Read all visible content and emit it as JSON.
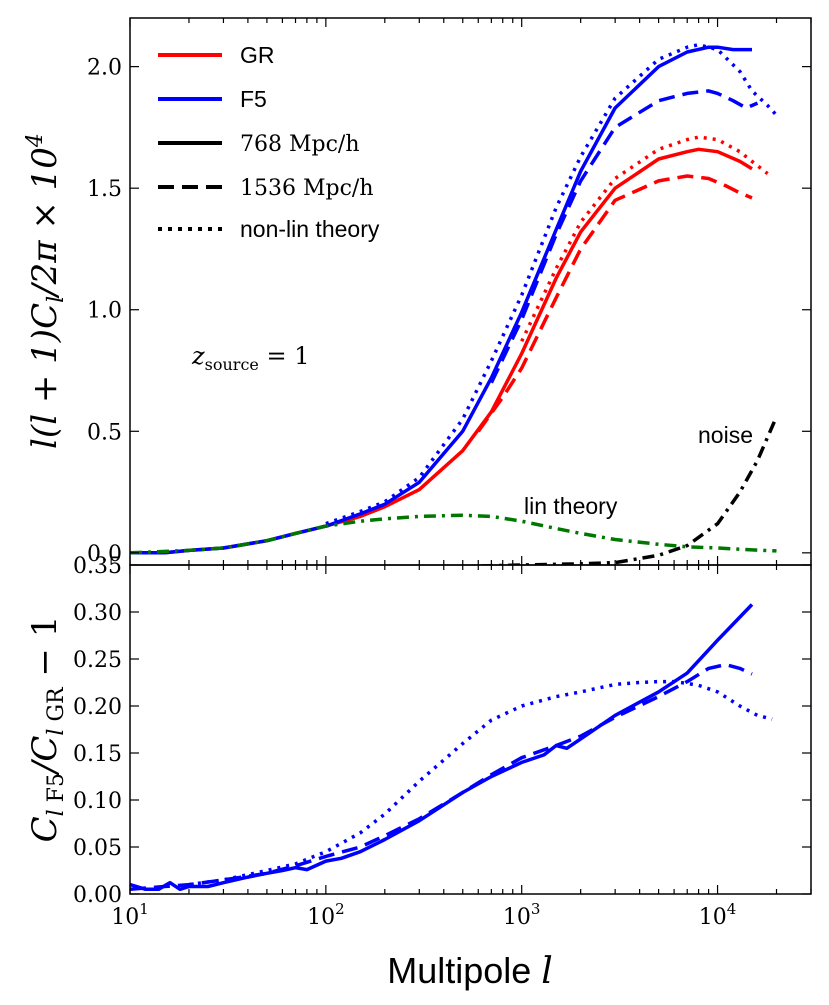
{
  "chart_data": [
    {
      "panel": "top",
      "type": "line",
      "xscale": "log",
      "xlim": [
        10,
        30000
      ],
      "ylim": [
        -0.05,
        2.2
      ],
      "yticks": [
        0.0,
        0.5,
        1.0,
        1.5,
        2.0
      ],
      "ytick_labels": [
        "0.0",
        "0.5",
        "1.0",
        "1.5",
        "2.0"
      ],
      "ylabel": "l(l + 1)C_l/2π × 10^4",
      "annotations": {
        "source": "z_source = 1",
        "lin": "lin theory",
        "noise": "noise"
      },
      "legend": {
        "position": "top-left",
        "entries": [
          {
            "label": "GR",
            "color": "#ff0000",
            "style": "solid",
            "math": false
          },
          {
            "label": "F5",
            "color": "#0000ff",
            "style": "solid",
            "math": false
          },
          {
            "label": "768 Mpc/h",
            "color": "#000000",
            "style": "solid",
            "math": true
          },
          {
            "label": "1536 Mpc/h",
            "color": "#000000",
            "style": "dashed",
            "math": true
          },
          {
            "label": "non-lin theory",
            "color": "#000000",
            "style": "dotted",
            "math": false
          }
        ]
      },
      "series": [
        {
          "name": "GR 768 Mpc/h",
          "color": "#ff0000",
          "style": "solid",
          "x": [
            10,
            15,
            20,
            30,
            50,
            70,
            100,
            150,
            200,
            300,
            500,
            700,
            1000,
            1500,
            2000,
            3000,
            5000,
            7000,
            8000,
            10000,
            13000,
            15000
          ],
          "y": [
            0.0,
            0.0,
            0.01,
            0.02,
            0.05,
            0.08,
            0.11,
            0.15,
            0.19,
            0.26,
            0.42,
            0.58,
            0.82,
            1.13,
            1.32,
            1.5,
            1.62,
            1.65,
            1.66,
            1.65,
            1.61,
            1.58
          ]
        },
        {
          "name": "GR 1536 Mpc/h",
          "color": "#ff0000",
          "style": "dashed",
          "x": [
            600,
            800,
            1000,
            1500,
            2000,
            3000,
            5000,
            7000,
            9000,
            11000,
            13000,
            15000
          ],
          "y": [
            0.5,
            0.64,
            0.76,
            1.05,
            1.25,
            1.45,
            1.53,
            1.55,
            1.54,
            1.51,
            1.48,
            1.46
          ]
        },
        {
          "name": "GR non-lin theory",
          "color": "#ff0000",
          "style": "dotted",
          "x": [
            1000,
            1500,
            2000,
            3000,
            5000,
            7000,
            8000,
            10000,
            13000,
            15000,
            18000
          ],
          "y": [
            0.87,
            1.17,
            1.36,
            1.54,
            1.66,
            1.7,
            1.71,
            1.7,
            1.65,
            1.61,
            1.56
          ]
        },
        {
          "name": "F5 768 Mpc/h",
          "color": "#0000ff",
          "style": "solid",
          "x": [
            10,
            15,
            20,
            30,
            50,
            70,
            100,
            150,
            200,
            300,
            500,
            700,
            1000,
            1500,
            2000,
            3000,
            5000,
            7000,
            9000,
            10000,
            12000,
            15000
          ],
          "y": [
            0.0,
            0.0,
            0.01,
            0.02,
            0.05,
            0.08,
            0.11,
            0.16,
            0.2,
            0.29,
            0.5,
            0.72,
            0.99,
            1.33,
            1.57,
            1.83,
            2.0,
            2.06,
            2.08,
            2.08,
            2.07,
            2.07
          ]
        },
        {
          "name": "F5 1536 Mpc/h",
          "color": "#0000ff",
          "style": "dashed",
          "x": [
            700,
            1000,
            1500,
            2000,
            3000,
            5000,
            7000,
            9000,
            10000,
            12000,
            14000,
            16000
          ],
          "y": [
            0.7,
            0.96,
            1.31,
            1.53,
            1.75,
            1.86,
            1.89,
            1.9,
            1.89,
            1.86,
            1.83,
            1.85
          ]
        },
        {
          "name": "F5 non-lin theory",
          "color": "#0000ff",
          "style": "dotted",
          "x": [
            100,
            150,
            200,
            300,
            500,
            700,
            1000,
            1500,
            2000,
            3000,
            5000,
            7000,
            8000,
            10000,
            13000,
            15000,
            18000,
            20000
          ],
          "y": [
            0.12,
            0.17,
            0.21,
            0.31,
            0.55,
            0.79,
            1.06,
            1.42,
            1.63,
            1.87,
            2.03,
            2.08,
            2.09,
            2.07,
            1.98,
            1.9,
            1.84,
            1.8
          ]
        },
        {
          "name": "lin theory",
          "color": "#007700",
          "style": "dashdot",
          "x": [
            10,
            20,
            30,
            50,
            70,
            100,
            150,
            200,
            300,
            500,
            700,
            1000,
            1500,
            2000,
            3000,
            5000,
            7000,
            10000,
            15000,
            20000
          ],
          "y": [
            0.0,
            0.01,
            0.02,
            0.05,
            0.08,
            0.11,
            0.13,
            0.14,
            0.15,
            0.155,
            0.15,
            0.13,
            0.1,
            0.08,
            0.055,
            0.035,
            0.025,
            0.02,
            0.012,
            0.008
          ]
        },
        {
          "name": "noise",
          "color": "#000000",
          "style": "dashdot",
          "x": [
            10,
            30,
            100,
            300,
            1000,
            2000,
            3000,
            5000,
            7000,
            10000,
            13000,
            16000,
            20000
          ],
          "y": [
            -0.08,
            -0.07,
            -0.06,
            -0.06,
            -0.05,
            -0.045,
            -0.04,
            -0.01,
            0.03,
            0.12,
            0.25,
            0.38,
            0.56
          ]
        }
      ]
    },
    {
      "panel": "bottom",
      "type": "line",
      "xscale": "log",
      "xlim": [
        10,
        30000
      ],
      "ylim": [
        0.0,
        0.35
      ],
      "yticks": [
        0.0,
        0.05,
        0.1,
        0.15,
        0.2,
        0.25,
        0.3,
        0.35
      ],
      "ytick_labels": [
        "0.00",
        "0.05",
        "0.10",
        "0.15",
        "0.20",
        "0.25",
        "0.30",
        "0.35"
      ],
      "ylabel": "C_l F5/C_l GR − 1",
      "xlabel": "Multipole l",
      "xtick_values": [
        10,
        100,
        1000,
        10000
      ],
      "xtick_labels": [
        {
          "base": "10",
          "exp": "1"
        },
        {
          "base": "10",
          "exp": "2"
        },
        {
          "base": "10",
          "exp": "3"
        },
        {
          "base": "10",
          "exp": "4"
        }
      ],
      "series": [
        {
          "name": "768 Mpc/h",
          "color": "#0000ff",
          "style": "solid",
          "x": [
            10,
            12,
            14,
            16,
            18,
            20,
            25,
            30,
            40,
            50,
            60,
            70,
            80,
            100,
            120,
            150,
            200,
            300,
            500,
            700,
            1000,
            1300,
            1500,
            1700,
            2000,
            3000,
            5000,
            7000,
            10000,
            15000
          ],
          "y": [
            0.01,
            0.005,
            0.005,
            0.012,
            0.005,
            0.008,
            0.008,
            0.012,
            0.018,
            0.022,
            0.025,
            0.028,
            0.026,
            0.035,
            0.038,
            0.045,
            0.058,
            0.078,
            0.108,
            0.125,
            0.14,
            0.148,
            0.158,
            0.155,
            0.165,
            0.19,
            0.215,
            0.235,
            0.27,
            0.308
          ]
        },
        {
          "name": "1536 Mpc/h",
          "color": "#0000ff",
          "style": "dashed",
          "x": [
            10,
            15,
            20,
            30,
            50,
            70,
            100,
            150,
            200,
            300,
            500,
            700,
            1000,
            1500,
            2000,
            3000,
            5000,
            7000,
            9000,
            11000,
            13000,
            15000
          ],
          "y": [
            0.005,
            0.008,
            0.01,
            0.015,
            0.022,
            0.03,
            0.04,
            0.05,
            0.062,
            0.08,
            0.108,
            0.127,
            0.145,
            0.158,
            0.168,
            0.188,
            0.21,
            0.226,
            0.24,
            0.244,
            0.24,
            0.234
          ]
        },
        {
          "name": "non-lin theory",
          "color": "#0000ff",
          "style": "dotted",
          "x": [
            20,
            30,
            50,
            70,
            100,
            150,
            200,
            300,
            500,
            700,
            1000,
            1500,
            2000,
            3000,
            4000,
            5000,
            6000,
            7000,
            8000,
            10000,
            13000,
            16000,
            19000
          ],
          "y": [
            0.01,
            0.015,
            0.025,
            0.032,
            0.045,
            0.065,
            0.085,
            0.12,
            0.16,
            0.185,
            0.2,
            0.21,
            0.215,
            0.223,
            0.225,
            0.226,
            0.226,
            0.224,
            0.222,
            0.215,
            0.2,
            0.19,
            0.186
          ]
        }
      ]
    }
  ]
}
